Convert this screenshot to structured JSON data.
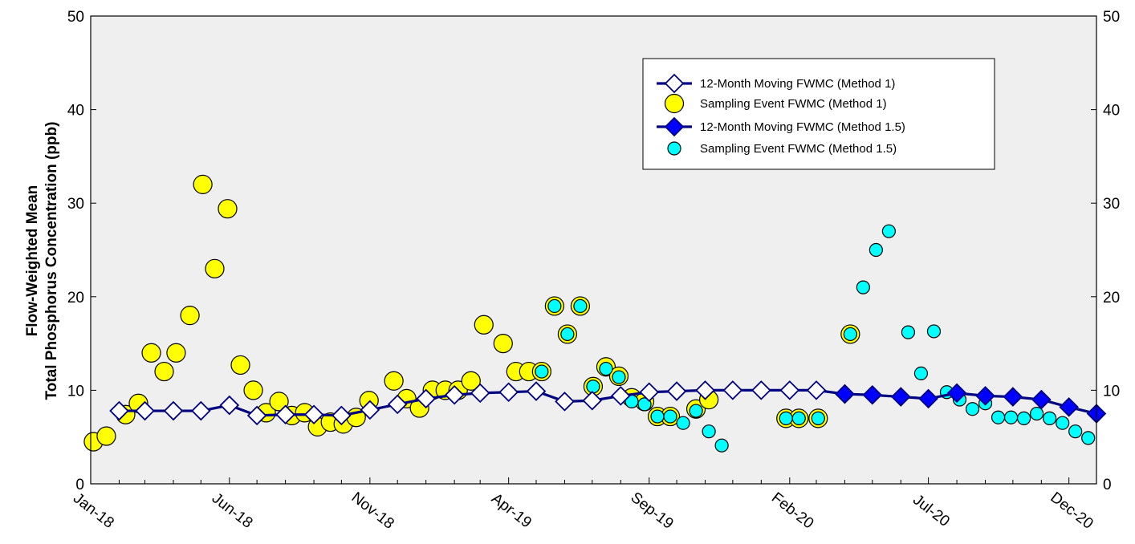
{
  "chart_data": {
    "type": "line",
    "ylabel_line1": "Flow-Weighted Mean",
    "ylabel_line2": "Total Phosphorus Concentration (ppb)",
    "ylim": [
      0,
      50
    ],
    "yticks": [
      0,
      10,
      20,
      30,
      40,
      50
    ],
    "x_axis": {
      "type": "date",
      "min": "2018-01-01",
      "max": "2020-12-31"
    },
    "xticks": [
      {
        "date": "2018-01-01",
        "label": "Jan-18"
      },
      {
        "date": "2018-06-01",
        "label": "Jun-18"
      },
      {
        "date": "2018-11-01",
        "label": "Nov-18"
      },
      {
        "date": "2019-04-01",
        "label": "Apr-19"
      },
      {
        "date": "2019-09-01",
        "label": "Sep-19"
      },
      {
        "date": "2020-02-01",
        "label": "Feb-20"
      },
      {
        "date": "2020-07-01",
        "label": "Jul-20"
      },
      {
        "date": "2020-12-01",
        "label": "Dec-20"
      }
    ],
    "minor_tick_months": 1,
    "plot_background": "#efefef",
    "legend_position": "top-right",
    "series": [
      {
        "name": "12-Month Moving FWMC (Method 1)",
        "kind": "line-diamond-open",
        "line_color": "#000080",
        "fill_color": "#ffffff",
        "points": [
          [
            "2018-02-01",
            7.8
          ],
          [
            "2018-03-01",
            7.8
          ],
          [
            "2018-04-01",
            7.8
          ],
          [
            "2018-05-01",
            7.8
          ],
          [
            "2018-06-01",
            8.4
          ],
          [
            "2018-07-01",
            7.3
          ],
          [
            "2018-08-01",
            7.4
          ],
          [
            "2018-09-01",
            7.4
          ],
          [
            "2018-10-01",
            7.3
          ],
          [
            "2018-11-01",
            7.9
          ],
          [
            "2018-12-01",
            8.5
          ],
          [
            "2019-01-01",
            9.1
          ],
          [
            "2019-02-01",
            9.5
          ],
          [
            "2019-03-01",
            9.7
          ],
          [
            "2019-04-01",
            9.8
          ],
          [
            "2019-05-01",
            9.9
          ],
          [
            "2019-06-01",
            8.8
          ],
          [
            "2019-07-01",
            8.9
          ],
          [
            "2019-08-01",
            9.4
          ],
          [
            "2019-09-01",
            9.8
          ],
          [
            "2019-10-01",
            9.9
          ],
          [
            "2019-11-01",
            10.0
          ],
          [
            "2019-12-01",
            10.0
          ],
          [
            "2020-01-01",
            10.0
          ],
          [
            "2020-02-01",
            10.0
          ],
          [
            "2020-03-01",
            10.0
          ],
          [
            "2020-04-01",
            9.6
          ]
        ]
      },
      {
        "name": "Sampling Event FWMC (Method 1)",
        "kind": "scatter-circle",
        "color": "#ffff00",
        "stroke": "#000000",
        "points": [
          [
            "2018-01-04",
            4.5
          ],
          [
            "2018-01-18",
            5.1
          ],
          [
            "2018-02-08",
            7.4
          ],
          [
            "2018-02-22",
            8.6
          ],
          [
            "2018-03-08",
            14.0
          ],
          [
            "2018-03-22",
            12.0
          ],
          [
            "2018-04-04",
            14.0
          ],
          [
            "2018-04-19",
            18.0
          ],
          [
            "2018-05-03",
            32.0
          ],
          [
            "2018-05-16",
            23.0
          ],
          [
            "2018-05-30",
            29.4
          ],
          [
            "2018-06-13",
            12.7
          ],
          [
            "2018-06-27",
            10.0
          ],
          [
            "2018-07-11",
            7.6
          ],
          [
            "2018-07-25",
            8.8
          ],
          [
            "2018-08-08",
            7.3
          ],
          [
            "2018-08-22",
            7.6
          ],
          [
            "2018-09-05",
            6.1
          ],
          [
            "2018-09-19",
            6.6
          ],
          [
            "2018-10-03",
            6.4
          ],
          [
            "2018-10-17",
            7.1
          ],
          [
            "2018-10-31",
            8.9
          ],
          [
            "2018-11-27",
            11.0
          ],
          [
            "2018-12-11",
            9.1
          ],
          [
            "2018-12-25",
            8.1
          ],
          [
            "2019-01-08",
            10.0
          ],
          [
            "2019-01-22",
            10.0
          ],
          [
            "2019-02-05",
            10.0
          ],
          [
            "2019-02-19",
            11.0
          ],
          [
            "2019-03-05",
            17.0
          ],
          [
            "2019-03-26",
            15.0
          ],
          [
            "2019-04-09",
            12.0
          ],
          [
            "2019-04-23",
            12.0
          ],
          [
            "2019-05-07",
            12.0
          ],
          [
            "2019-05-21",
            19.0
          ],
          [
            "2019-06-04",
            16.0
          ],
          [
            "2019-06-18",
            19.0
          ],
          [
            "2019-07-02",
            10.4
          ],
          [
            "2019-07-16",
            12.5
          ],
          [
            "2019-07-30",
            11.5
          ],
          [
            "2019-08-13",
            9.2
          ],
          [
            "2019-08-27",
            8.8
          ],
          [
            "2019-09-10",
            7.2
          ],
          [
            "2019-09-24",
            7.2
          ],
          [
            "2019-10-22",
            8.0
          ],
          [
            "2019-11-05",
            9.0
          ],
          [
            "2020-01-28",
            7.0
          ],
          [
            "2020-02-11",
            7.0
          ],
          [
            "2020-03-03",
            7.0
          ],
          [
            "2020-04-07",
            16.0
          ]
        ]
      },
      {
        "name": "12-Month Moving FWMC (Method 1.5)",
        "kind": "line-diamond-filled",
        "line_color": "#000080",
        "fill_color": "#0000ff",
        "points": [
          [
            "2020-04-01",
            9.6
          ],
          [
            "2020-05-01",
            9.5
          ],
          [
            "2020-06-01",
            9.3
          ],
          [
            "2020-07-01",
            9.1
          ],
          [
            "2020-08-01",
            9.7
          ],
          [
            "2020-09-01",
            9.4
          ],
          [
            "2020-10-01",
            9.3
          ],
          [
            "2020-11-01",
            9.0
          ],
          [
            "2020-12-01",
            8.2
          ],
          [
            "2020-12-31",
            7.5
          ]
        ]
      },
      {
        "name": "Sampling Event FWMC (Method 1.5)",
        "kind": "scatter-circle-small",
        "color": "#00ffff",
        "stroke": "#000000",
        "points": [
          [
            "2019-05-07",
            12.0
          ],
          [
            "2019-05-21",
            19.0
          ],
          [
            "2019-06-04",
            16.0
          ],
          [
            "2019-06-18",
            19.0
          ],
          [
            "2019-07-02",
            10.4
          ],
          [
            "2019-07-16",
            12.3
          ],
          [
            "2019-07-30",
            11.4
          ],
          [
            "2019-08-13",
            8.8
          ],
          [
            "2019-08-27",
            8.5
          ],
          [
            "2019-09-10",
            7.2
          ],
          [
            "2019-09-24",
            7.2
          ],
          [
            "2019-10-08",
            6.5
          ],
          [
            "2019-10-22",
            7.8
          ],
          [
            "2019-11-05",
            5.6
          ],
          [
            "2019-11-19",
            4.1
          ],
          [
            "2020-01-28",
            7.0
          ],
          [
            "2020-02-11",
            7.0
          ],
          [
            "2020-03-03",
            7.0
          ],
          [
            "2020-04-07",
            16.0
          ],
          [
            "2020-04-21",
            21.0
          ],
          [
            "2020-05-05",
            25.0
          ],
          [
            "2020-05-19",
            27.0
          ],
          [
            "2020-06-09",
            16.2
          ],
          [
            "2020-06-23",
            11.8
          ],
          [
            "2020-07-07",
            16.3
          ],
          [
            "2020-07-21",
            9.8
          ],
          [
            "2020-08-04",
            9.0
          ],
          [
            "2020-08-18",
            8.0
          ],
          [
            "2020-09-01",
            8.6
          ],
          [
            "2020-09-15",
            7.1
          ],
          [
            "2020-09-29",
            7.1
          ],
          [
            "2020-10-13",
            7.0
          ],
          [
            "2020-10-27",
            7.5
          ],
          [
            "2020-11-10",
            7.0
          ],
          [
            "2020-11-24",
            6.5
          ],
          [
            "2020-12-08",
            5.6
          ],
          [
            "2020-12-22",
            4.9
          ]
        ]
      }
    ]
  }
}
